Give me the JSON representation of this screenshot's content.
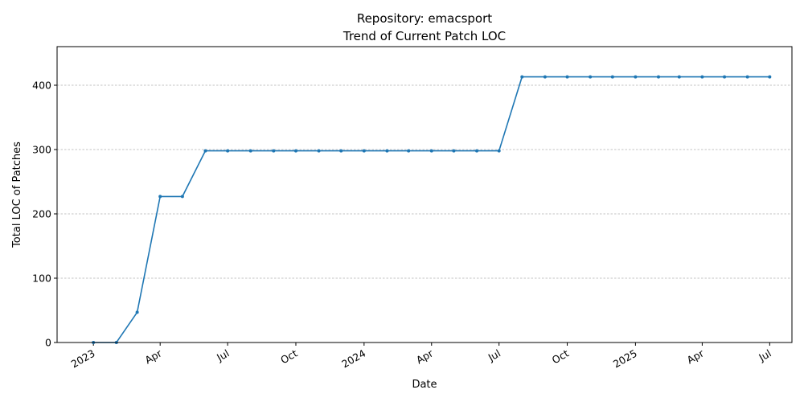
{
  "chart_data": {
    "type": "line",
    "title_line1": "Repository: emacsport",
    "title_line2": "Trend of Current Patch LOC",
    "xlabel": "Date",
    "ylabel": "Total LOC of Patches",
    "ylim": [
      0,
      460
    ],
    "xlim": [
      "2022-11-13",
      "2025-07-31"
    ],
    "y_ticks": [
      0,
      100,
      200,
      300,
      400
    ],
    "x_ticks": [
      {
        "date": "2023-01-01",
        "label": "2023"
      },
      {
        "date": "2023-04-01",
        "label": "Apr"
      },
      {
        "date": "2023-07-01",
        "label": "Jul"
      },
      {
        "date": "2023-10-01",
        "label": "Oct"
      },
      {
        "date": "2024-01-01",
        "label": "2024"
      },
      {
        "date": "2024-04-01",
        "label": "Apr"
      },
      {
        "date": "2024-07-01",
        "label": "Jul"
      },
      {
        "date": "2024-10-01",
        "label": "Oct"
      },
      {
        "date": "2025-01-01",
        "label": "2025"
      },
      {
        "date": "2025-04-01",
        "label": "Apr"
      },
      {
        "date": "2025-07-01",
        "label": "Jul"
      }
    ],
    "grid": "y-dashed",
    "color": "#1f77b4",
    "series": [
      {
        "x": [
          "2023-01-01",
          "2023-02-01",
          "2023-03-01",
          "2023-04-01",
          "2023-05-01",
          "2023-06-01",
          "2023-07-01",
          "2023-08-01",
          "2023-09-01",
          "2023-10-01",
          "2023-11-01",
          "2023-12-01",
          "2024-01-01",
          "2024-02-01",
          "2024-03-01",
          "2024-04-01",
          "2024-05-01",
          "2024-06-01",
          "2024-07-01",
          "2024-08-01",
          "2024-09-01",
          "2024-10-01",
          "2024-11-01",
          "2024-12-01",
          "2025-01-01",
          "2025-02-01",
          "2025-03-01",
          "2025-04-01",
          "2025-05-01",
          "2025-06-01",
          "2025-07-01"
        ],
        "y": [
          0,
          0,
          47,
          227,
          227,
          298,
          298,
          298,
          298,
          298,
          298,
          298,
          298,
          298,
          298,
          298,
          298,
          298,
          298,
          413,
          413,
          413,
          413,
          413,
          413,
          413,
          413,
          413,
          413,
          413,
          413
        ]
      }
    ]
  }
}
